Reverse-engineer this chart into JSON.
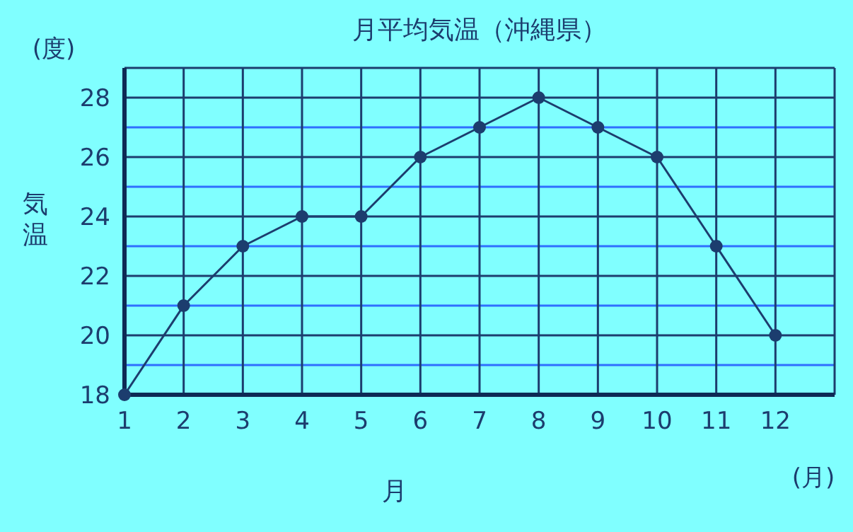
{
  "chart_data": {
    "type": "line",
    "title": "月平均気温（沖縄県）",
    "xlabel": "月",
    "ylabel": "気温",
    "annotations": [
      "(度)",
      "(月)"
    ],
    "x": [
      1,
      2,
      3,
      4,
      5,
      6,
      7,
      8,
      9,
      10,
      11,
      12
    ],
    "series": [
      {
        "color": "#1c3d6e",
        "values": [
          18,
          21,
          23,
          24,
          24,
          26,
          27,
          28,
          27,
          26,
          23,
          20
        ]
      }
    ],
    "xlim": [
      1,
      13
    ],
    "ylim": [
      18,
      29
    ],
    "xticks": [
      1,
      2,
      3,
      4,
      5,
      6,
      7,
      8,
      9,
      10,
      11,
      12
    ],
    "yticks": [
      18,
      {
        "value": 19,
        "label": null
      },
      20,
      {
        "value": 21,
        "label": null
      },
      22,
      {
        "value": 23,
        "label": null
      },
      24,
      {
        "value": 25,
        "label": null
      },
      26,
      {
        "value": 27,
        "label": null
      },
      28
    ],
    "grid": true,
    "marker": "circle",
    "line_style": "solid"
  }
}
